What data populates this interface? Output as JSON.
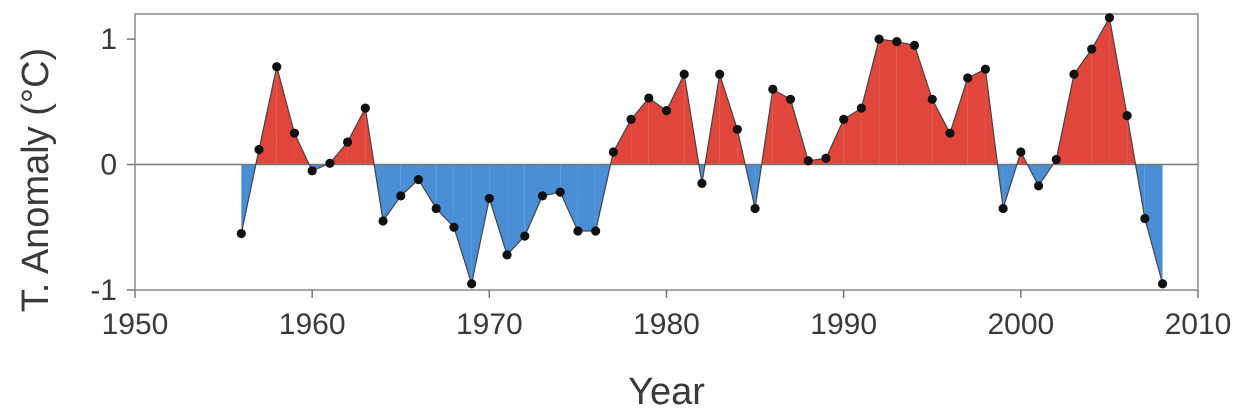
{
  "chart_data": {
    "type": "area",
    "title": "",
    "xlabel": "Year",
    "ylabel": "T. Anomaly (°C)",
    "xlim": [
      1950,
      2010
    ],
    "ylim": [
      -1,
      1.2
    ],
    "x_ticks": [
      1950,
      1960,
      1970,
      1980,
      1990,
      2000,
      2010
    ],
    "y_ticks": [
      -1,
      0,
      1
    ],
    "grid": false,
    "legend": "none",
    "colors": {
      "positive": "#e0463a",
      "negative": "#4a8fd6",
      "points": "#111111",
      "line": "#444444"
    },
    "x": [
      1956,
      1957,
      1958,
      1959,
      1960,
      1961,
      1962,
      1963,
      1964,
      1965,
      1966,
      1967,
      1968,
      1969,
      1970,
      1971,
      1972,
      1973,
      1974,
      1975,
      1976,
      1977,
      1978,
      1979,
      1980,
      1981,
      1982,
      1983,
      1984,
      1985,
      1986,
      1987,
      1988,
      1989,
      1990,
      1991,
      1992,
      1993,
      1994,
      1995,
      1996,
      1997,
      1998,
      1999,
      2000,
      2001,
      2002,
      2003,
      2004,
      2005,
      2006,
      2007,
      2008
    ],
    "series": [
      {
        "values": [
          -0.55,
          0.12,
          0.78,
          0.25,
          -0.05,
          0.01,
          0.18,
          0.45,
          -0.45,
          -0.25,
          -0.12,
          -0.35,
          -0.5,
          -0.95,
          -0.27,
          -0.72,
          -0.57,
          -0.25,
          -0.22,
          -0.53,
          -0.53,
          0.1,
          0.36,
          0.53,
          0.43,
          0.72,
          -0.15,
          0.72,
          0.28,
          -0.35,
          0.6,
          0.52,
          0.03,
          0.05,
          0.36,
          0.45,
          1.0,
          0.98,
          0.95,
          0.52,
          0.25,
          0.69,
          0.76,
          -0.35,
          0.1,
          -0.17,
          0.04,
          0.72,
          0.92,
          1.17,
          0.39,
          -0.43,
          -0.95
        ]
      }
    ]
  }
}
